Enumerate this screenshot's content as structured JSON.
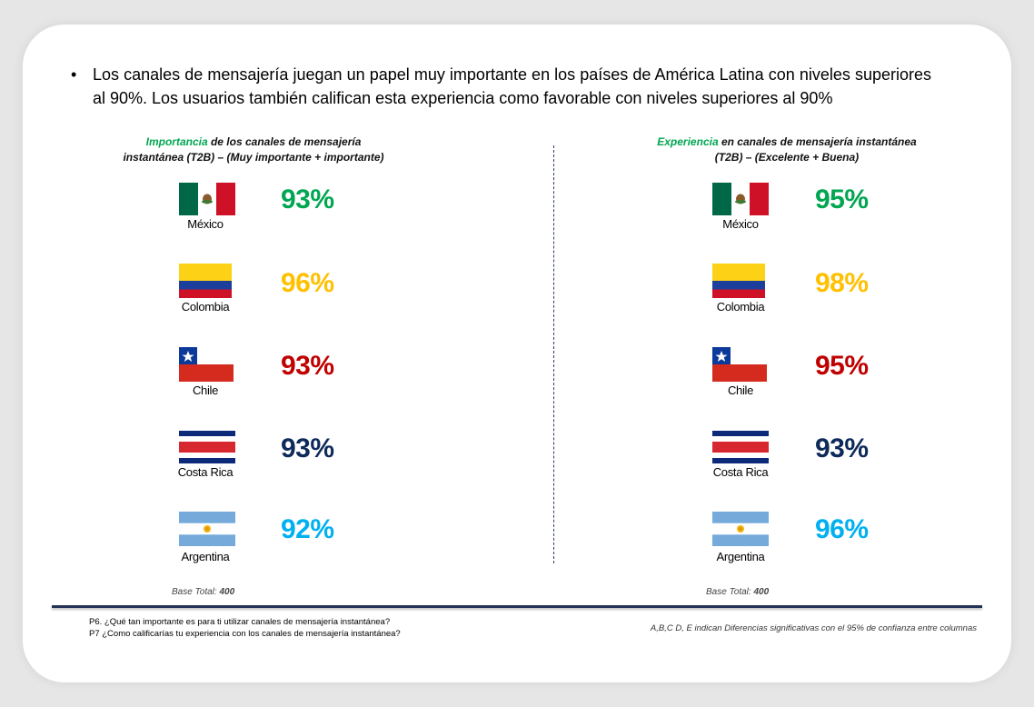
{
  "headline": {
    "bullet": "•",
    "text": "Los canales de mensajería juegan un papel muy importante en los países de América Latina con niveles superiores al 90%. Los usuarios también califican esta experiencia como favorable con niveles superiores al 90%"
  },
  "left_panel": {
    "title_highlight": "Importancia",
    "title_rest_line1": " de los canales de mensajería",
    "title_line2": "instantánea (T2B) – (Muy importante + importante)",
    "base_label": "Base Total: ",
    "base_value": "400",
    "rows": [
      {
        "country": "México",
        "value": "93%",
        "color": "#00a651",
        "flag": "mexico-flag-icon"
      },
      {
        "country": "Colombia",
        "value": "96%",
        "color": "#ffc000",
        "flag": "colombia-flag-icon"
      },
      {
        "country": "Chile",
        "value": "93%",
        "color": "#c00000",
        "flag": "chile-flag-icon"
      },
      {
        "country": "Costa Rica",
        "value": "93%",
        "color": "#0d2a5a",
        "flag": "costa-rica-flag-icon"
      },
      {
        "country": "Argentina",
        "value": "92%",
        "color": "#00b0f0",
        "flag": "argentina-flag-icon"
      }
    ]
  },
  "right_panel": {
    "title_highlight": "Experiencia",
    "title_rest_line1": " en canales de mensajería instantánea",
    "title_line2": "(T2B) – (Excelente + Buena)",
    "base_label": "Base Total: ",
    "base_value": "400",
    "rows": [
      {
        "country": "México",
        "value": "95%",
        "color": "#00a651",
        "flag": "mexico-flag-icon"
      },
      {
        "country": "Colombia",
        "value": "98%",
        "color": "#ffc000",
        "flag": "colombia-flag-icon"
      },
      {
        "country": "Chile",
        "value": "95%",
        "color": "#c00000",
        "flag": "chile-flag-icon"
      },
      {
        "country": "Costa Rica",
        "value": "93%",
        "color": "#0d2a5a",
        "flag": "costa-rica-flag-icon"
      },
      {
        "country": "Argentina",
        "value": "96%",
        "color": "#00b0f0",
        "flag": "argentina-flag-icon"
      }
    ]
  },
  "footer": {
    "q6": "P6. ¿Qué tan importante es para ti utilizar canales de mensajería instantánea?",
    "q7": "P7 ¿Como calificarías tu experiencia con los canales de mensajería instantánea?",
    "note": "A,B,C D, E indican Diferencias significativas con el 95% de confianza entre columnas"
  }
}
